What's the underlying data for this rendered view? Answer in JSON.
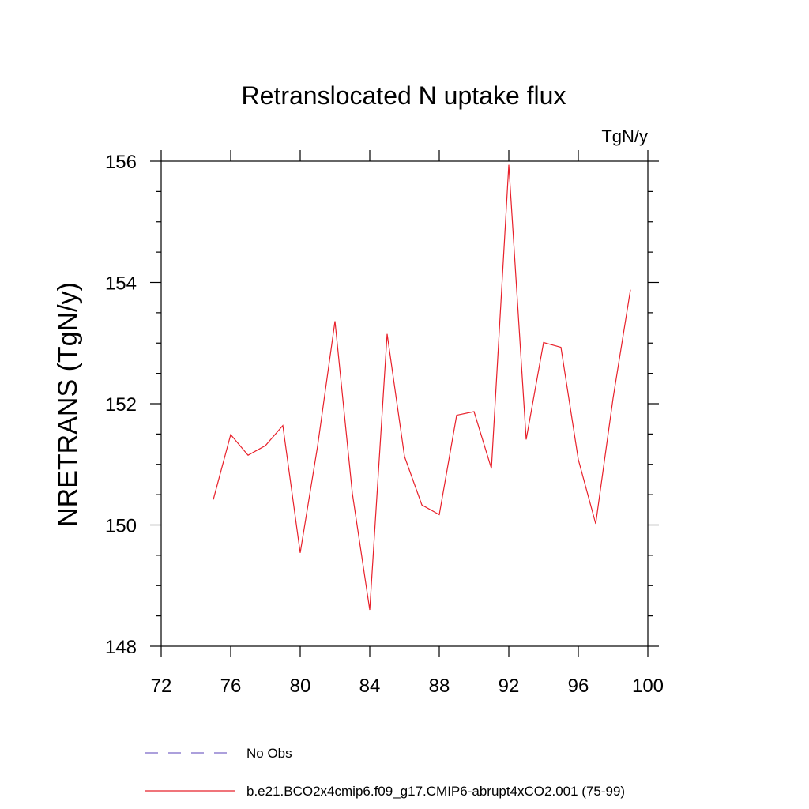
{
  "chart_data": {
    "type": "line",
    "title": "Retranslocated N uptake flux",
    "units_label": "TgN/y",
    "ylabel": "NRETRANS  (TgN/y)",
    "xlabel": "",
    "xlim": [
      72,
      100
    ],
    "ylim": [
      148,
      156
    ],
    "x_ticks": [
      72,
      76,
      80,
      84,
      88,
      92,
      96,
      100
    ],
    "y_ticks": [
      148,
      150,
      152,
      154,
      156
    ],
    "grid": false,
    "legend_position": "bottom",
    "series": [
      {
        "name": "No Obs",
        "color": "#7b68c8",
        "dash": "dashed",
        "x": [],
        "values": []
      },
      {
        "name": "b.e21.BCO2x4cmip6.f09_g17.CMIP6-abrupt4xCO2.001 (75-99)",
        "color": "#e8202a",
        "dash": "solid",
        "x": [
          75,
          76,
          77,
          78,
          79,
          80,
          81,
          82,
          83,
          84,
          85,
          86,
          87,
          88,
          89,
          90,
          91,
          92,
          93,
          94,
          95,
          96,
          97,
          98,
          99
        ],
        "values": [
          150.42,
          151.49,
          151.15,
          151.31,
          151.64,
          149.54,
          151.3,
          153.36,
          150.52,
          148.6,
          153.15,
          151.13,
          150.33,
          150.17,
          151.81,
          151.87,
          150.93,
          155.94,
          151.41,
          153.01,
          152.93,
          151.08,
          150.02,
          152.09,
          153.88
        ]
      }
    ]
  }
}
